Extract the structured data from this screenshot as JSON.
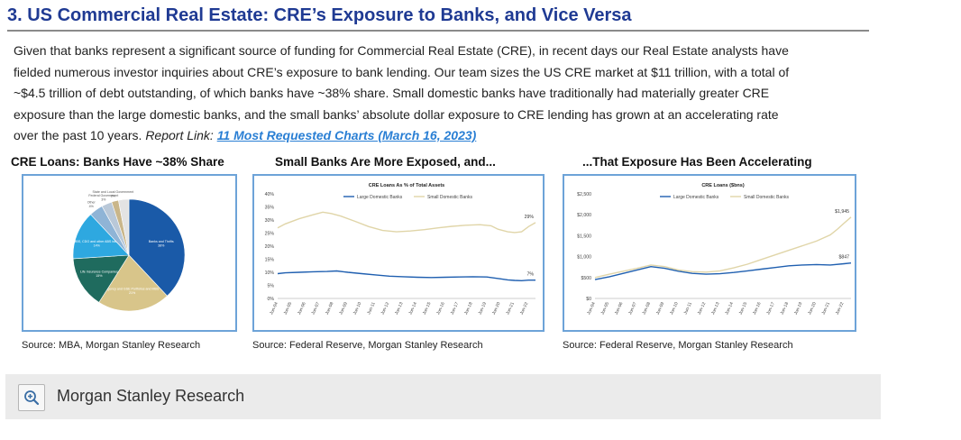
{
  "header": {
    "title": "3. US Commercial Real Estate: CRE’s Exposure to Banks, and Vice Versa"
  },
  "intro": {
    "line1": "Given that banks represent a significant source of funding for Commercial Real Estate (CRE), in recent days our Real Estate analysts have",
    "line2": "fielded numerous investor inquiries about CRE’s exposure to bank lending. Our team sizes the US CRE market at $11 trillion, with a total of",
    "line3": "~$4.5 trillion of debt outstanding, of which banks have ~38% share. Small domestic banks have traditionally had materially greater CRE",
    "line4": "exposure than the large domestic banks, and the small banks’ absolute dollar exposure to CRE lending has grown at an accelerating rate",
    "line5": "over the past 10 years.",
    "report_label": "Report Link:",
    "report_link": "11 Most Requested Charts (March 16, 2023)"
  },
  "charts": {
    "left_title": "CRE Loans: Banks Have ~38% Share",
    "mid_title": "Small Banks Are More Exposed, and...",
    "right_title": "...That Exposure Has Been Accelerating",
    "left_source": "Source: MBA, Morgan Stanley Research",
    "mid_source": "Source: Federal Reserve, Morgan Stanley Research",
    "right_source": "Source: Federal Reserve, Morgan Stanley Research"
  },
  "chart_data": [
    {
      "type": "pie",
      "slices": [
        {
          "label": "Banks and Thrifts",
          "value": 38,
          "pct_label": "38%",
          "color": "#1a5aa8"
        },
        {
          "label": "Agency and GSE Portfolios and MBS",
          "value": 21,
          "pct_label": "21%",
          "color": "#d8c58a"
        },
        {
          "label": "Life Insurance Companies",
          "value": 15,
          "pct_label": "15%",
          "color": "#1f6b5e"
        },
        {
          "label": "CMBS, CDO and other ABS issuers",
          "value": 14,
          "pct_label": "14%",
          "color": "#2ea8e0"
        },
        {
          "label": "Other",
          "value": 4,
          "pct_label": "4%",
          "color": "#8fb4d6"
        },
        {
          "label": "Federal Government",
          "value": 3,
          "pct_label": "3%",
          "color": "#b9c8d8"
        },
        {
          "label": "State and Local Government",
          "value": 2,
          "pct_label": "2%",
          "color": "#c9b68a"
        },
        {
          "label": "",
          "value": 3,
          "pct_label": "",
          "color": "#e3e3e3"
        }
      ]
    },
    {
      "type": "line",
      "title": "CRE Loans As % of Total Assets",
      "x_ticks": [
        "Jun-04",
        "Jun-05",
        "Jun-06",
        "Jun-07",
        "Jun-08",
        "Jun-09",
        "Jun-10",
        "Jun-11",
        "Jun-12",
        "Jun-13",
        "Jun-14",
        "Jun-15",
        "Jun-16",
        "Jun-17",
        "Jun-18",
        "Jun-19",
        "Jun-20",
        "Jun-21",
        "Jun-22"
      ],
      "y_ticks": [
        "40%",
        "35%",
        "30%",
        "25%",
        "20%",
        "15%",
        "10%",
        "5%",
        "0%"
      ],
      "ylim": [
        0,
        40
      ],
      "x_range": [
        2004.45,
        2023.0
      ],
      "series": [
        {
          "name": "Large Domestic Banks",
          "color": "#1f5fb0",
          "x": [
            2004.45,
            2005.0,
            2006.0,
            2007.0,
            2008.0,
            2008.7,
            2009.5,
            2010.5,
            2011.5,
            2012.5,
            2013.5,
            2014.5,
            2015.5,
            2016.5,
            2017.5,
            2018.5,
            2019.5,
            2020.5,
            2021.0,
            2021.5,
            2022.0,
            2022.5,
            2023.0
          ],
          "y": [
            9.5,
            9.8,
            10.0,
            10.2,
            10.3,
            10.5,
            10.0,
            9.5,
            9.0,
            8.5,
            8.3,
            8.1,
            8.0,
            8.1,
            8.2,
            8.3,
            8.2,
            7.5,
            7.1,
            6.9,
            6.8,
            7.0,
            7.0
          ],
          "end_label": "7%"
        },
        {
          "name": "Small Domestic Banks",
          "color": "#e0d5a8",
          "x": [
            2004.45,
            2005.0,
            2006.0,
            2007.0,
            2007.7,
            2008.3,
            2009.0,
            2010.0,
            2011.0,
            2012.0,
            2013.0,
            2014.0,
            2015.0,
            2016.0,
            2017.0,
            2018.0,
            2019.0,
            2019.8,
            2020.3,
            2021.0,
            2021.5,
            2022.0,
            2022.5,
            2023.0
          ],
          "y": [
            27.0,
            28.5,
            30.5,
            32.0,
            33.0,
            32.5,
            31.5,
            29.5,
            27.5,
            26.0,
            25.5,
            25.8,
            26.3,
            27.0,
            27.6,
            28.0,
            28.2,
            27.8,
            26.5,
            25.5,
            25.2,
            25.5,
            27.5,
            29.0
          ],
          "end_label": "29%"
        }
      ]
    },
    {
      "type": "line",
      "title": "CRE Loans ($bns)",
      "x_ticks": [
        "Jun-04",
        "Jun-05",
        "Jun-06",
        "Jun-07",
        "Jun-08",
        "Jun-09",
        "Jun-10",
        "Jun-11",
        "Jun-12",
        "Jun-13",
        "Jun-14",
        "Jun-15",
        "Jun-16",
        "Jun-17",
        "Jun-18",
        "Jun-19",
        "Jun-20",
        "Jun-21",
        "Jun-22"
      ],
      "y_ticks": [
        "$2,500",
        "$2,000",
        "$1,500",
        "$1,000",
        "$500",
        "$0"
      ],
      "ylim": [
        0,
        2500
      ],
      "x_range": [
        2004.45,
        2023.0
      ],
      "series": [
        {
          "name": "Large Domestic Banks",
          "color": "#1f5fb0",
          "x": [
            2004.45,
            2005.5,
            2006.5,
            2007.5,
            2008.5,
            2009.5,
            2010.5,
            2011.5,
            2012.5,
            2013.5,
            2014.5,
            2015.5,
            2016.5,
            2017.5,
            2018.5,
            2019.5,
            2020.5,
            2021.5,
            2022.5,
            2023.0
          ],
          "y": [
            450,
            520,
            600,
            680,
            760,
            720,
            650,
            600,
            580,
            590,
            620,
            660,
            700,
            740,
            780,
            800,
            810,
            800,
            830,
            847
          ],
          "end_label": "$847"
        },
        {
          "name": "Small Domestic Banks",
          "color": "#e0d5a8",
          "x": [
            2004.45,
            2005.5,
            2006.5,
            2007.5,
            2008.5,
            2009.5,
            2010.5,
            2011.5,
            2012.5,
            2013.5,
            2014.5,
            2015.5,
            2016.5,
            2017.5,
            2018.5,
            2019.5,
            2020.5,
            2021.5,
            2022.0,
            2022.5,
            2023.0
          ],
          "y": [
            500,
            580,
            650,
            720,
            800,
            760,
            680,
            640,
            630,
            660,
            730,
            820,
            930,
            1040,
            1150,
            1260,
            1370,
            1520,
            1650,
            1800,
            1945
          ],
          "end_label": "$1,945"
        }
      ]
    }
  ],
  "footer": {
    "label": "Morgan Stanley Research",
    "zoom_icon": "zoom-in-icon"
  }
}
